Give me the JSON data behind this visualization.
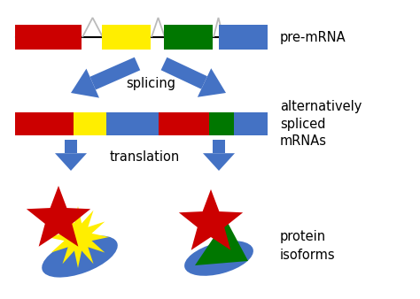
{
  "background_color": "#ffffff",
  "colors": {
    "red": "#cc0000",
    "yellow": "#ffee00",
    "green": "#007700",
    "blue": "#4472c4",
    "arrow_blue": "#4472c4",
    "intron_gray": "#bbbbbb",
    "star_red": "#cc0000",
    "star_yellow": "#ffee00",
    "ellipse_blue": "#4472c4",
    "cone_green": "#007700"
  },
  "labels": {
    "pre_mrna": "pre-mRNA",
    "splicing": "splicing",
    "alt_spliced": "alternatively\nspliced\nmRNAs",
    "translation": "translation",
    "protein_isoforms": "protein\nisoforms"
  },
  "font_size": 10.5
}
